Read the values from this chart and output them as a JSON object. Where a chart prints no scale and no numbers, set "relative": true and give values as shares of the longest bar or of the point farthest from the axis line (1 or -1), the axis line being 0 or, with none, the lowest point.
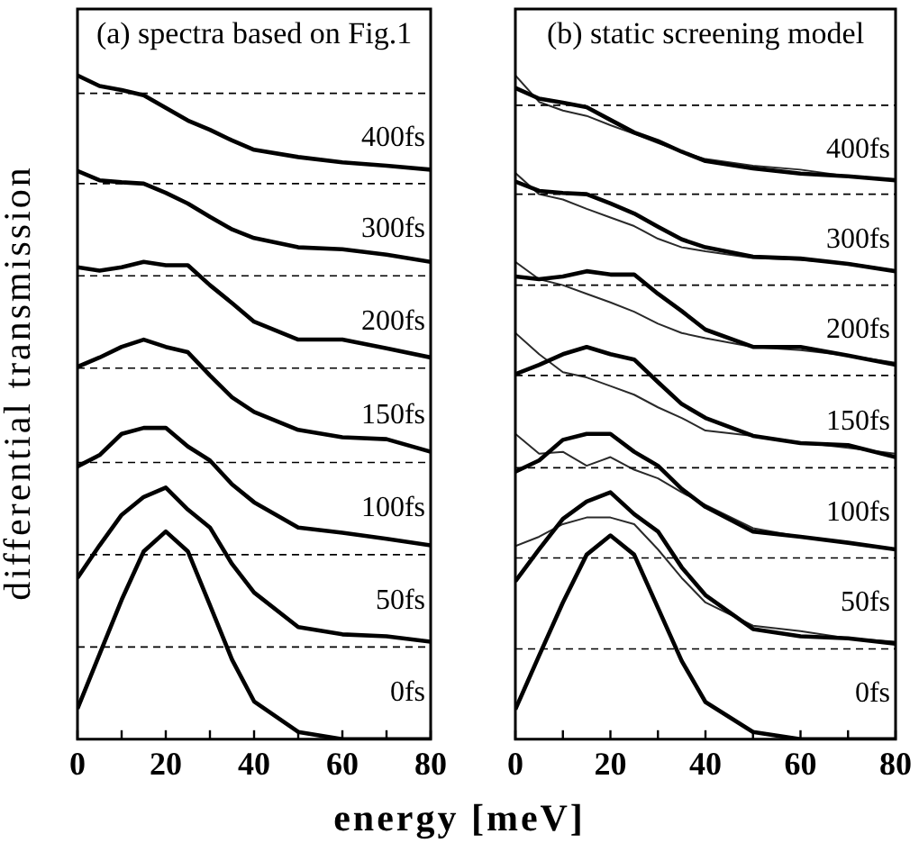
{
  "chart_data": [
    {
      "type": "line",
      "title": "(a) spectra based on Fig.1",
      "ylabel": "differential transmission",
      "relative": true,
      "x": [
        0,
        5,
        10,
        15,
        20,
        25,
        30,
        35,
        40,
        50,
        60,
        70,
        80
      ],
      "xlim": [
        0,
        80
      ],
      "xticks": [
        0,
        {
          "value": 10,
          "label": null
        },
        20,
        {
          "value": 30,
          "label": null
        },
        40,
        {
          "value": 50,
          "label": null
        },
        60,
        {
          "value": 70,
          "label": null
        },
        80
      ],
      "grid": false,
      "legend": false,
      "marker": "none",
      "line_style": "solid",
      "series": [
        {
          "color": "#000000",
          "values": [
            0.046,
            0.128,
            0.21,
            0.283,
            0.313,
            0.283,
            0.202,
            0.12,
            0.057,
            0.011,
            0,
            0,
            0
          ]
        },
        {
          "color": "#000000",
          "values": [
            0.243,
            0.292,
            0.338,
            0.365,
            0.379,
            0.346,
            0.319,
            0.264,
            0.221,
            0.169,
            0.158,
            0.155,
            0.147
          ]
        },
        {
          "color": "#000000",
          "values": [
            0.411,
            0.428,
            0.46,
            0.469,
            0.469,
            0.441,
            0.42,
            0.384,
            0.357,
            0.319,
            0.311,
            0.302,
            0.292
          ]
        },
        {
          "color": "#000000",
          "values": [
            0.561,
            0.575,
            0.591,
            0.602,
            0.591,
            0.583,
            0.548,
            0.515,
            0.493,
            0.466,
            0.455,
            0.452,
            0.433
          ]
        },
        {
          "color": "#000000",
          "values": [
            0.711,
            0.706,
            0.711,
            0.719,
            0.714,
            0.714,
            0.684,
            0.657,
            0.629,
            0.602,
            0.602,
            0.589,
            0.575
          ]
        },
        {
          "color": "#000000",
          "values": [
            0.856,
            0.842,
            0.839,
            0.837,
            0.823,
            0.807,
            0.787,
            0.768,
            0.755,
            0.741,
            0.738,
            0.73,
            0.719
          ]
        },
        {
          "color": "#000000",
          "values": [
            1.0,
            0.984,
            0.978,
            0.97,
            0.951,
            0.932,
            0.918,
            0.902,
            0.888,
            0.877,
            0.869,
            0.864,
            0.858
          ]
        }
      ],
      "ref_lines": [
        {
          "axis": "y",
          "value": 0.139,
          "line_style": "dashed"
        },
        {
          "axis": "y",
          "value": 0.278,
          "line_style": "dashed"
        },
        {
          "axis": "y",
          "value": 0.417,
          "line_style": "dashed"
        },
        {
          "axis": "y",
          "value": 0.559,
          "line_style": "dashed"
        },
        {
          "axis": "y",
          "value": 0.698,
          "line_style": "dashed"
        },
        {
          "axis": "y",
          "value": 0.837,
          "line_style": "dashed"
        },
        {
          "axis": "y",
          "value": 0.973,
          "line_style": "dashed"
        }
      ],
      "annotations": [
        "400fs",
        "300fs",
        "200fs",
        "150fs",
        "100fs",
        "50fs",
        "0fs"
      ]
    },
    {
      "type": "line",
      "title": "(b) static screening model",
      "xlabel": "energy [meV]",
      "relative": true,
      "x": [
        0,
        5,
        10,
        15,
        20,
        25,
        30,
        35,
        40,
        50,
        60,
        70,
        80
      ],
      "xlim": [
        0,
        80
      ],
      "xticks": [
        0,
        {
          "value": 10,
          "label": null
        },
        20,
        {
          "value": 30,
          "label": null
        },
        40,
        {
          "value": 50,
          "label": null
        },
        60,
        {
          "value": 70,
          "label": null
        },
        80
      ],
      "grid": false,
      "legend": false,
      "marker": "none",
      "line_style": "solid",
      "series": [
        {
          "color": "#000000",
          "values": [
            0.045,
            0.126,
            0.206,
            0.278,
            0.307,
            0.278,
            0.198,
            0.118,
            0.056,
            0.011,
            0,
            0,
            0
          ]
        },
        {
          "color": "#000000",
          "values": [
            0.238,
            0.286,
            0.332,
            0.358,
            0.372,
            0.339,
            0.313,
            0.259,
            0.217,
            0.166,
            0.155,
            0.152,
            0.144
          ]
        },
        {
          "color": "#2a2a2a",
          "values": [
            0.291,
            0.305,
            0.324,
            0.334,
            0.334,
            0.324,
            0.286,
            0.243,
            0.206,
            0.171,
            0.163,
            0.152,
            0.147
          ]
        },
        {
          "color": "#000000",
          "values": [
            0.403,
            0.42,
            0.451,
            0.46,
            0.46,
            0.433,
            0.412,
            0.377,
            0.35,
            0.313,
            0.305,
            0.296,
            0.286
          ]
        },
        {
          "color": "#2a2a2a",
          "values": [
            0.46,
            0.43,
            0.433,
            0.412,
            0.425,
            0.406,
            0.393,
            0.372,
            0.353,
            0.318,
            0.305,
            0.297,
            0.286
          ]
        },
        {
          "color": "#000000",
          "values": [
            0.55,
            0.564,
            0.58,
            0.591,
            0.58,
            0.572,
            0.538,
            0.505,
            0.484,
            0.457,
            0.446,
            0.443,
            0.425
          ]
        },
        {
          "color": "#2a2a2a",
          "values": [
            0.612,
            0.58,
            0.553,
            0.545,
            0.532,
            0.519,
            0.5,
            0.484,
            0.465,
            0.457,
            0.447,
            0.439,
            0.43
          ]
        },
        {
          "color": "#000000",
          "values": [
            0.697,
            0.693,
            0.697,
            0.705,
            0.7,
            0.7,
            0.671,
            0.645,
            0.617,
            0.591,
            0.591,
            0.578,
            0.564
          ]
        },
        {
          "color": "#2a2a2a",
          "values": [
            0.719,
            0.693,
            0.684,
            0.671,
            0.658,
            0.644,
            0.626,
            0.612,
            0.604,
            0.591,
            0.586,
            0.578,
            0.567
          ]
        },
        {
          "color": "#000000",
          "values": [
            0.84,
            0.826,
            0.823,
            0.821,
            0.807,
            0.792,
            0.772,
            0.753,
            0.741,
            0.727,
            0.724,
            0.716,
            0.705
          ]
        },
        {
          "color": "#2a2a2a",
          "values": [
            0.853,
            0.821,
            0.813,
            0.799,
            0.786,
            0.773,
            0.754,
            0.741,
            0.735,
            0.725,
            0.722,
            0.717,
            0.706
          ]
        },
        {
          "color": "#000000",
          "values": [
            0.981,
            0.965,
            0.959,
            0.952,
            0.933,
            0.914,
            0.901,
            0.885,
            0.871,
            0.86,
            0.852,
            0.848,
            0.842
          ]
        },
        {
          "color": "#2a2a2a",
          "values": [
            1.0,
            0.96,
            0.947,
            0.939,
            0.925,
            0.912,
            0.898,
            0.885,
            0.874,
            0.864,
            0.858,
            0.848,
            0.842
          ]
        }
      ],
      "ref_lines": [
        {
          "axis": "y",
          "value": 0.136,
          "line_style": "dashed"
        },
        {
          "axis": "y",
          "value": 0.273,
          "line_style": "dashed"
        },
        {
          "axis": "y",
          "value": 0.409,
          "line_style": "dashed"
        },
        {
          "axis": "y",
          "value": 0.548,
          "line_style": "dashed"
        },
        {
          "axis": "y",
          "value": 0.684,
          "line_style": "dashed"
        },
        {
          "axis": "y",
          "value": 0.821,
          "line_style": "dashed"
        },
        {
          "axis": "y",
          "value": 0.955,
          "line_style": "dashed"
        }
      ],
      "annotations": [
        "400fs",
        "300fs",
        "200fs",
        "150fs",
        "100fs",
        "50fs",
        "0fs"
      ]
    }
  ]
}
